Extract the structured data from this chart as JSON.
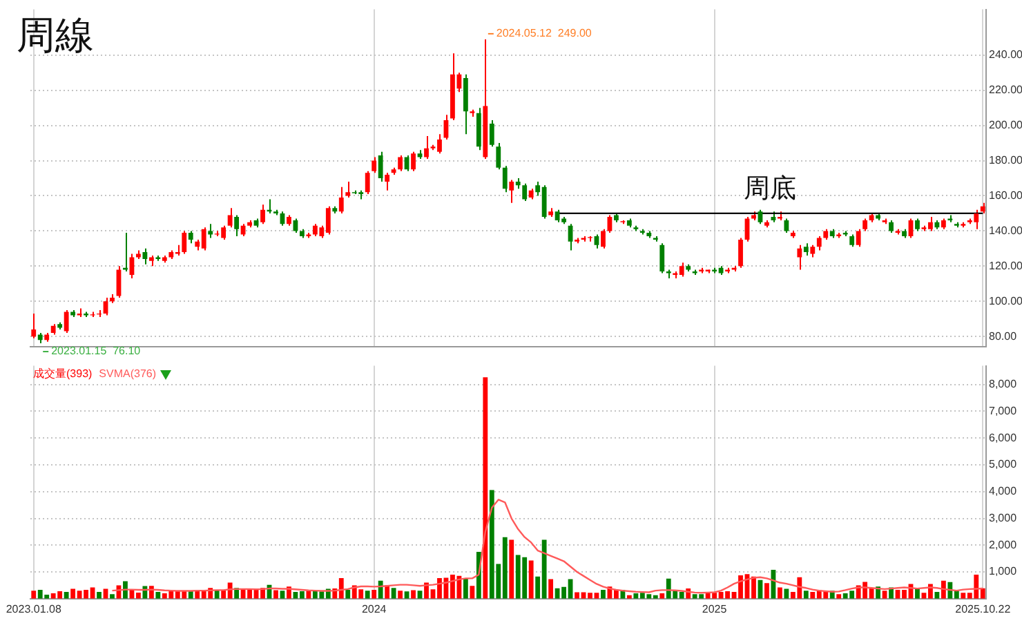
{
  "chart_data": [
    {
      "type": "candlestick",
      "title": "周線",
      "categories": [
        "2023.01.08",
        null,
        null,
        null,
        null,
        null,
        null,
        null,
        null,
        null,
        null,
        null,
        null,
        null,
        null,
        null,
        null,
        null,
        null,
        null,
        null,
        null,
        null,
        null,
        null,
        null,
        null,
        null,
        null,
        null,
        null,
        null,
        null,
        null,
        null,
        null,
        null,
        null,
        null,
        null,
        null,
        null,
        null,
        null,
        null,
        null,
        null,
        null,
        null,
        null,
        null,
        null,
        "2024",
        null,
        null,
        null,
        null,
        null,
        null,
        null,
        null,
        null,
        null,
        null,
        null,
        null,
        null,
        null,
        null,
        null,
        null,
        null,
        null,
        null,
        null,
        null,
        null,
        null,
        null,
        null,
        null,
        null,
        null,
        null,
        null,
        null,
        null,
        null,
        null,
        null,
        null,
        null,
        null,
        null,
        null,
        null,
        null,
        null,
        null,
        null,
        null,
        null,
        null,
        null,
        "2025",
        null,
        null,
        null,
        null,
        null,
        null,
        null,
        null,
        null,
        null,
        null,
        null,
        null,
        null,
        null,
        null,
        null,
        null,
        null,
        null,
        null,
        null,
        null,
        null,
        null,
        null,
        null,
        null,
        null,
        null,
        null,
        null,
        null,
        null,
        null,
        null,
        null,
        null,
        null,
        null,
        "2025.10.22"
      ],
      "ohlc": [
        [
          80,
          93,
          79,
          84
        ],
        [
          81,
          82,
          76.1,
          78
        ],
        [
          78,
          82,
          77,
          81
        ],
        [
          82,
          87,
          81,
          86
        ],
        [
          87,
          88,
          84,
          85
        ],
        [
          83,
          95,
          82,
          94
        ],
        [
          94,
          95,
          91,
          92
        ],
        [
          92,
          96,
          91,
          93
        ],
        [
          93,
          94,
          91,
          92
        ],
        [
          92,
          94,
          91,
          92.5
        ],
        [
          92.5,
          95,
          91,
          93
        ],
        [
          93,
          102,
          92,
          100
        ],
        [
          100,
          104,
          99,
          102
        ],
        [
          103,
          120,
          102,
          118
        ],
        [
          119,
          139,
          117,
          118
        ],
        [
          115,
          127,
          113,
          125
        ],
        [
          125,
          129,
          124,
          127
        ],
        [
          128,
          130,
          121,
          124
        ],
        [
          123,
          126,
          120,
          125
        ],
        [
          125,
          126,
          123,
          124
        ],
        [
          123,
          126,
          122,
          125
        ],
        [
          125,
          129,
          124,
          128
        ],
        [
          127,
          132,
          126,
          128
        ],
        [
          128,
          140,
          127,
          139
        ],
        [
          139,
          140,
          133,
          135
        ],
        [
          131,
          135,
          129,
          134
        ],
        [
          130,
          142,
          129,
          141
        ],
        [
          140,
          144,
          136,
          138
        ],
        [
          138,
          140,
          137,
          138.5
        ],
        [
          136,
          143,
          135,
          142
        ],
        [
          143,
          153,
          142,
          149
        ],
        [
          148,
          149,
          137,
          141
        ],
        [
          138,
          144,
          137,
          143
        ],
        [
          143,
          146,
          142,
          145
        ],
        [
          146,
          147,
          142,
          143
        ],
        [
          145,
          155,
          144,
          152
        ],
        [
          152,
          158,
          150,
          151
        ],
        [
          151,
          152,
          149,
          150
        ],
        [
          150,
          151,
          143,
          144
        ],
        [
          144,
          149,
          143,
          148
        ],
        [
          146,
          147,
          139,
          140
        ],
        [
          140,
          141,
          136,
          137
        ],
        [
          137,
          139,
          136,
          138
        ],
        [
          138,
          144,
          137,
          143
        ],
        [
          137,
          143,
          136,
          142
        ],
        [
          139,
          154,
          138,
          153
        ],
        [
          153,
          154,
          150,
          151
        ],
        [
          151,
          165,
          150,
          159
        ],
        [
          160,
          168,
          159,
          162
        ],
        [
          162,
          163,
          161,
          161.5
        ],
        [
          162,
          163,
          158,
          161
        ],
        [
          162,
          174,
          161,
          173
        ],
        [
          174,
          182,
          173,
          180
        ],
        [
          183,
          185,
          168,
          170
        ],
        [
          168,
          173,
          163,
          172
        ],
        [
          173,
          176,
          172,
          175
        ],
        [
          175,
          183,
          174,
          182
        ],
        [
          182,
          183,
          174,
          175
        ],
        [
          175,
          185,
          174,
          184
        ],
        [
          184,
          186,
          181,
          182
        ],
        [
          182,
          194,
          181,
          187
        ],
        [
          187,
          189,
          186,
          188
        ],
        [
          185,
          195,
          184,
          192
        ],
        [
          193,
          206,
          192,
          203
        ],
        [
          204,
          241,
          203,
          229
        ],
        [
          221,
          230,
          219,
          229
        ],
        [
          227,
          229,
          195,
          208
        ],
        [
          207,
          209,
          205,
          208
        ],
        [
          207,
          210,
          186,
          188
        ],
        [
          182,
          249,
          181,
          211
        ],
        [
          201,
          203,
          188,
          189
        ],
        [
          188,
          190,
          175,
          176
        ],
        [
          176,
          177,
          162,
          164
        ],
        [
          163,
          169,
          156,
          168
        ],
        [
          168,
          170,
          164,
          166
        ],
        [
          166,
          167,
          157,
          158
        ],
        [
          159,
          164,
          158,
          163
        ],
        [
          166,
          168,
          160,
          162
        ],
        [
          165,
          166,
          147,
          148
        ],
        [
          149,
          153,
          148,
          151
        ],
        [
          151,
          152,
          145,
          146
        ],
        [
          147,
          148,
          144,
          145
        ],
        [
          143,
          144,
          129,
          134
        ],
        [
          134,
          136,
          133,
          135
        ],
        [
          135,
          137,
          134,
          136
        ],
        [
          136,
          137,
          134,
          136.5
        ],
        [
          137,
          138,
          130,
          132
        ],
        [
          131,
          141,
          130,
          140
        ],
        [
          140,
          149,
          139,
          148
        ],
        [
          149,
          150,
          145,
          146
        ],
        [
          145,
          146,
          144,
          145.5
        ],
        [
          146,
          147,
          142,
          143
        ],
        [
          142,
          143,
          140,
          141
        ],
        [
          140,
          141,
          138,
          139
        ],
        [
          139,
          140,
          136,
          137
        ],
        [
          136,
          137,
          134,
          135
        ],
        [
          132,
          133,
          116,
          117
        ],
        [
          117,
          118,
          113,
          116
        ],
        [
          115,
          117,
          113,
          116
        ],
        [
          115,
          122,
          114,
          120
        ],
        [
          120,
          121,
          117,
          118
        ],
        [
          117,
          118,
          115,
          116
        ],
        [
          117,
          119,
          116,
          118
        ],
        [
          117,
          118,
          116,
          118
        ],
        [
          118,
          119,
          116,
          117
        ],
        [
          119,
          120,
          115,
          116
        ],
        [
          117,
          119,
          116,
          118
        ],
        [
          118,
          120,
          117,
          119
        ],
        [
          120,
          136,
          119,
          135
        ],
        [
          135,
          148,
          134,
          147
        ],
        [
          147,
          151,
          146,
          149
        ],
        [
          151,
          152,
          144,
          145
        ],
        [
          143,
          146,
          142,
          145
        ],
        [
          148,
          151,
          145,
          146
        ],
        [
          147,
          151,
          146,
          148
        ],
        [
          146,
          147,
          139,
          140
        ],
        [
          137,
          140,
          136,
          139
        ],
        [
          125,
          132,
          118,
          130
        ],
        [
          131,
          133,
          126,
          128
        ],
        [
          127,
          132,
          125,
          131
        ],
        [
          131,
          137,
          129,
          136
        ],
        [
          136,
          141,
          135,
          140
        ],
        [
          140,
          141,
          136,
          137
        ],
        [
          137,
          139,
          136,
          138
        ],
        [
          139,
          140,
          137,
          138
        ],
        [
          137,
          138,
          131,
          132
        ],
        [
          132,
          141,
          131,
          140
        ],
        [
          141,
          147,
          140,
          146
        ],
        [
          146,
          150,
          145,
          149
        ],
        [
          149,
          150,
          146,
          147
        ],
        [
          145,
          147,
          144,
          146
        ],
        [
          145,
          146,
          139,
          140
        ],
        [
          139,
          141,
          138,
          140
        ],
        [
          140,
          141,
          136,
          137
        ],
        [
          137,
          147,
          136,
          146
        ],
        [
          146,
          147,
          140,
          141
        ],
        [
          141,
          143,
          140,
          142
        ],
        [
          141,
          148,
          140,
          145
        ],
        [
          145,
          146,
          141,
          142
        ],
        [
          142,
          147,
          141,
          146
        ],
        [
          147,
          149,
          145,
          146
        ],
        [
          144,
          145,
          142,
          143
        ],
        [
          143,
          145,
          142,
          144
        ],
        [
          145,
          147,
          144,
          146
        ],
        [
          145,
          152,
          141,
          150
        ],
        [
          151,
          156,
          150,
          154
        ]
      ],
      "colors": [
        "#ff0000",
        "#008000",
        "#ff0000",
        "#ff0000",
        "#008000",
        "#ff0000",
        "#008000",
        "#ff0000",
        "#008000",
        "#ff0000",
        "#ff0000",
        "#ff0000",
        "#ff0000",
        "#ff0000",
        "#008000",
        "#ff0000",
        "#ff0000",
        "#008000",
        "#ff0000",
        "#008000",
        "#ff0000",
        "#ff0000",
        "#ff0000",
        "#ff0000",
        "#008000",
        "#ff0000",
        "#ff0000",
        "#008000",
        "#ff0000",
        "#ff0000",
        "#ff0000",
        "#008000",
        "#ff0000",
        "#ff0000",
        "#008000",
        "#ff0000",
        "#008000",
        "#008000",
        "#008000",
        "#ff0000",
        "#008000",
        "#008000",
        "#ff0000",
        "#ff0000",
        "#ff0000",
        "#ff0000",
        "#008000",
        "#ff0000",
        "#ff0000",
        "#008000",
        "#008000",
        "#ff0000",
        "#ff0000",
        "#008000",
        "#ff0000",
        "#ff0000",
        "#ff0000",
        "#008000",
        "#ff0000",
        "#008000",
        "#ff0000",
        "#ff0000",
        "#ff0000",
        "#ff0000",
        "#ff0000",
        "#ff0000",
        "#008000",
        "#ff0000",
        "#008000",
        "#ff0000",
        "#008000",
        "#008000",
        "#008000",
        "#ff0000",
        "#008000",
        "#008000",
        "#ff0000",
        "#008000",
        "#008000",
        "#ff0000",
        "#008000",
        "#008000",
        "#008000",
        "#ff0000",
        "#ff0000",
        "#ff0000",
        "#008000",
        "#ff0000",
        "#ff0000",
        "#008000",
        "#ff0000",
        "#008000",
        "#008000",
        "#008000",
        "#008000",
        "#008000",
        "#008000",
        "#008000",
        "#ff0000",
        "#ff0000",
        "#008000",
        "#008000",
        "#ff0000",
        "#ff0000",
        "#008000",
        "#008000",
        "#ff0000",
        "#ff0000",
        "#ff0000",
        "#ff0000",
        "#ff0000",
        "#008000",
        "#ff0000",
        "#008000",
        "#ff0000",
        "#008000",
        "#ff0000",
        "#ff0000",
        "#008000",
        "#ff0000",
        "#ff0000",
        "#ff0000",
        "#008000",
        "#ff0000",
        "#008000",
        "#008000",
        "#ff0000",
        "#ff0000",
        "#ff0000",
        "#008000",
        "#ff0000",
        "#008000",
        "#ff0000",
        "#008000",
        "#ff0000",
        "#008000",
        "#ff0000",
        "#ff0000",
        "#008000",
        "#ff0000",
        "#008000",
        "#008000",
        "#ff0000",
        "#ff0000",
        "#ff0000",
        "#ff0000"
      ],
      "series": [
        {
          "type": "line",
          "color": "#000000",
          "values": [
            null,
            null,
            null,
            null,
            null,
            null,
            null,
            null,
            null,
            null,
            null,
            null,
            null,
            null,
            null,
            null,
            null,
            null,
            null,
            null,
            null,
            null,
            null,
            null,
            null,
            null,
            null,
            null,
            null,
            null,
            null,
            null,
            null,
            null,
            null,
            null,
            null,
            null,
            null,
            null,
            null,
            null,
            null,
            null,
            null,
            null,
            null,
            null,
            null,
            null,
            null,
            null,
            null,
            null,
            null,
            null,
            null,
            null,
            null,
            null,
            null,
            null,
            null,
            null,
            null,
            null,
            null,
            null,
            null,
            null,
            null,
            null,
            null,
            null,
            null,
            null,
            null,
            null,
            null,
            null,
            150,
            150,
            150,
            150,
            150,
            150,
            150,
            150,
            150,
            150,
            150,
            150,
            150,
            150,
            150,
            150,
            150,
            150,
            150,
            150,
            150,
            150,
            150,
            150,
            150,
            150,
            150,
            150,
            150,
            150,
            150,
            150,
            150,
            150,
            150,
            150,
            150,
            150,
            150,
            150,
            150,
            150,
            150,
            150,
            150,
            150,
            150,
            150,
            150,
            150,
            150,
            150,
            150,
            150,
            150,
            150,
            150,
            150,
            150,
            150,
            150,
            150,
            150,
            150,
            150,
            150
          ]
        }
      ],
      "annotations": [
        "周底",
        "2024.05.12  249.00",
        "2023.01.15  76.10"
      ],
      "ylim": [
        74,
        266
      ],
      "yticks": [
        {
          "value": 80,
          "label": "80.00"
        },
        {
          "value": 100,
          "label": "100.00"
        },
        {
          "value": 120,
          "label": "120.00"
        },
        {
          "value": 140,
          "label": "140.00"
        },
        {
          "value": 160,
          "label": "160.00"
        },
        {
          "value": 180,
          "label": "180.00"
        },
        {
          "value": 200,
          "label": "200.00"
        },
        {
          "value": 220,
          "label": "220.00"
        },
        {
          "value": 240,
          "label": "240.00"
        }
      ],
      "grid": true,
      "tick_labels": "y"
    },
    {
      "type": "bar",
      "categories": [
        "2023.01.08",
        null,
        null,
        null,
        null,
        null,
        null,
        null,
        null,
        null,
        null,
        null,
        null,
        null,
        null,
        null,
        null,
        null,
        null,
        null,
        null,
        null,
        null,
        null,
        null,
        null,
        null,
        null,
        null,
        null,
        null,
        null,
        null,
        null,
        null,
        null,
        null,
        null,
        null,
        null,
        null,
        null,
        null,
        null,
        null,
        null,
        null,
        null,
        null,
        null,
        null,
        null,
        "2024",
        null,
        null,
        null,
        null,
        null,
        null,
        null,
        null,
        null,
        null,
        null,
        null,
        null,
        null,
        null,
        null,
        null,
        null,
        null,
        null,
        null,
        null,
        null,
        null,
        null,
        null,
        null,
        null,
        null,
        null,
        null,
        null,
        null,
        null,
        null,
        null,
        null,
        null,
        null,
        null,
        null,
        null,
        null,
        null,
        null,
        null,
        null,
        null,
        null,
        null,
        null,
        "2025",
        null,
        null,
        null,
        null,
        null,
        null,
        null,
        null,
        null,
        null,
        null,
        null,
        null,
        null,
        null,
        null,
        null,
        null,
        null,
        null,
        null,
        null,
        null,
        null,
        null,
        null,
        null,
        null,
        null,
        null,
        null,
        null,
        null,
        null,
        null,
        null,
        null,
        null,
        null,
        null,
        "2025.10.22"
      ],
      "series": [
        {
          "name": "成交量(393)",
          "colors": [
            "#ff0000",
            "#008000",
            "#008000",
            "#ff0000",
            "#ff0000",
            "#008000",
            "#ff0000",
            "#ff0000",
            "#ff0000",
            "#ff0000",
            "#008000",
            "#ff0000",
            "#008000",
            "#ff0000",
            "#008000",
            "#ff0000",
            "#ff0000",
            "#008000",
            "#ff0000",
            "#008000",
            "#ff0000",
            "#ff0000",
            "#ff0000",
            "#ff0000",
            "#008000",
            "#ff0000",
            "#ff0000",
            "#ff0000",
            "#008000",
            "#ff0000",
            "#ff0000",
            "#008000",
            "#ff0000",
            "#ff0000",
            "#ff0000",
            "#ff0000",
            "#008000",
            "#ff0000",
            "#008000",
            "#ff0000",
            "#008000",
            "#008000",
            "#ff0000",
            "#008000",
            "#008000",
            "#008000",
            "#ff0000",
            "#ff0000",
            "#008000",
            "#ff0000",
            "#ff0000",
            "#008000",
            "#ff0000",
            "#008000",
            "#ff0000",
            "#008000",
            "#ff0000",
            "#008000",
            "#ff0000",
            "#008000",
            "#ff0000",
            "#ff0000",
            "#ff0000",
            "#ff0000",
            "#ff0000",
            "#ff0000",
            "#008000",
            "#ff0000",
            "#008000",
            "#ff0000",
            "#008000",
            "#008000",
            "#008000",
            "#ff0000",
            "#008000",
            "#008000",
            "#ff0000",
            "#008000",
            "#008000",
            "#ff0000",
            "#008000",
            "#008000",
            "#008000",
            "#ff0000",
            "#ff0000",
            "#ff0000",
            "#ff0000",
            "#008000",
            "#ff0000",
            "#ff0000",
            "#008000",
            "#ff0000",
            "#008000",
            "#008000",
            "#008000",
            "#008000",
            "#ff0000",
            "#008000",
            "#008000",
            "#008000",
            "#ff0000",
            "#008000",
            "#008000",
            "#ff0000",
            "#ff0000",
            "#ff0000",
            "#ff0000",
            "#ff0000",
            "#ff0000",
            "#ff0000",
            "#ff0000",
            "#008000",
            "#ff0000",
            "#008000",
            "#ff0000",
            "#008000",
            "#ff0000",
            "#ff0000",
            "#008000",
            "#ff0000",
            "#ff0000",
            "#ff0000",
            "#008000",
            "#ff0000",
            "#008000",
            "#008000",
            "#ff0000",
            "#ff0000",
            "#ff0000",
            "#008000",
            "#ff0000",
            "#008000",
            "#ff0000",
            "#ff0000",
            "#ff0000",
            "#008000",
            "#ff0000",
            "#ff0000",
            "#008000",
            "#ff0000",
            "#008000",
            "#008000",
            "#ff0000",
            "#ff0000",
            "#ff0000",
            "#ff0000"
          ],
          "values": [
            300,
            330,
            150,
            200,
            280,
            250,
            370,
            300,
            330,
            420,
            250,
            370,
            170,
            500,
            650,
            330,
            230,
            470,
            480,
            250,
            200,
            300,
            300,
            300,
            280,
            300,
            320,
            400,
            330,
            330,
            600,
            400,
            330,
            330,
            350,
            400,
            520,
            320,
            300,
            450,
            250,
            280,
            300,
            280,
            270,
            370,
            380,
            770,
            330,
            500,
            350,
            300,
            330,
            670,
            500,
            400,
            300,
            270,
            320,
            300,
            600,
            350,
            770,
            780,
            900,
            850,
            750,
            480,
            1750,
            8270,
            4060,
            1300,
            2300,
            2200,
            1630,
            1550,
            1430,
            830,
            2200,
            730,
            390,
            440,
            730,
            240,
            240,
            220,
            220,
            330,
            450,
            330,
            330,
            130,
            200,
            220,
            170,
            130,
            200,
            750,
            330,
            250,
            380,
            170,
            170,
            250,
            220,
            250,
            280,
            250,
            870,
            920,
            830,
            700,
            580,
            1080,
            420,
            370,
            250,
            800,
            300,
            250,
            320,
            300,
            300,
            170,
            200,
            300,
            500,
            630,
            380,
            450,
            300,
            420,
            330,
            330,
            550,
            380,
            220,
            550,
            250,
            670,
            620,
            300,
            220,
            220,
            900,
            390
          ]
        },
        {
          "name": "SVMA(376)",
          "type": "line",
          "color": "#ff5a5a",
          "values": [
            null,
            null,
            null,
            null,
            null,
            null,
            null,
            null,
            null,
            null,
            null,
            null,
            300,
            320,
            340,
            340,
            330,
            330,
            340,
            330,
            310,
            300,
            290,
            290,
            290,
            300,
            300,
            310,
            320,
            320,
            350,
            360,
            360,
            360,
            350,
            360,
            380,
            380,
            370,
            370,
            350,
            330,
            310,
            300,
            290,
            290,
            300,
            330,
            360,
            420,
            460,
            460,
            450,
            460,
            480,
            500,
            520,
            520,
            500,
            480,
            500,
            520,
            560,
            600,
            660,
            720,
            760,
            760,
            900,
            2500,
            3400,
            3700,
            3600,
            3000,
            2600,
            2300,
            2100,
            1800,
            1700,
            1600,
            1500,
            1400,
            1200,
            1000,
            850,
            700,
            550,
            450,
            380,
            330,
            300,
            280,
            260,
            250,
            240,
            300,
            320,
            320,
            310,
            290,
            260,
            230,
            220,
            230,
            240,
            300,
            420,
            560,
            650,
            720,
            780,
            800,
            760,
            680,
            600,
            560,
            500,
            440,
            400,
            340,
            300,
            280,
            260,
            270,
            320,
            380,
            420,
            420,
            400,
            380,
            360,
            380,
            400,
            420,
            400,
            380,
            400,
            420,
            400,
            360,
            330,
            300,
            340,
            360,
            370,
            380
          ]
        }
      ],
      "ylim": [
        0,
        8700
      ],
      "yticks": [
        {
          "value": 1000,
          "label": "1,000"
        },
        {
          "value": 2000,
          "label": "2,000"
        },
        {
          "value": 3000,
          "label": "3,000"
        },
        {
          "value": 4000,
          "label": "4,000"
        },
        {
          "value": 5000,
          "label": "5,000"
        },
        {
          "value": 6000,
          "label": "6,000"
        },
        {
          "value": 7000,
          "label": "7,000"
        },
        {
          "value": 8000,
          "label": "8,000"
        }
      ],
      "grid": true,
      "legend": "top left"
    }
  ]
}
